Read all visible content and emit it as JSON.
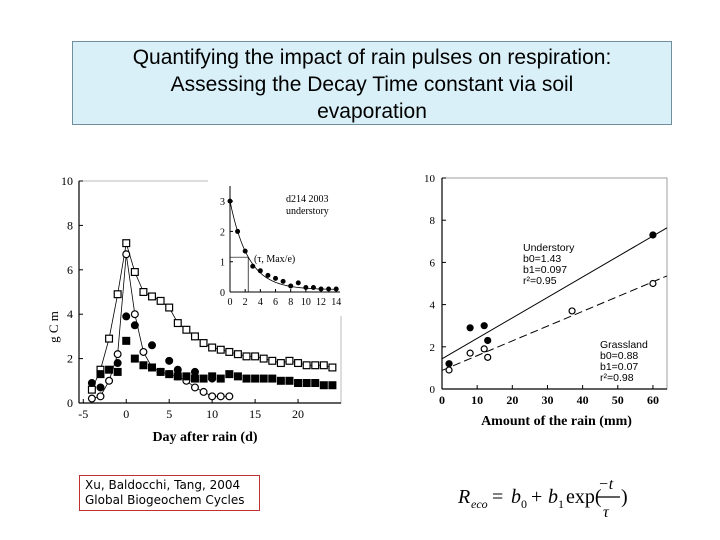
{
  "title": {
    "line1": "Quantifying the impact of rain pulses on respiration:",
    "line2": "Assessing the Decay Time constant via soil",
    "line3": "evaporation"
  },
  "citation": {
    "line1": "Xu, Baldocchi, Tang, 2004",
    "line2": "Global Biogeochem Cycles"
  },
  "formula": {
    "lhs": "R",
    "lhs_sub": "eco",
    "b0": "b",
    "b0_sub": "0",
    "b1": "b",
    "b1_sub": "1",
    "exp": "exp(",
    "numerator": "−t",
    "denominator": "τ",
    "close": ")"
  },
  "colors": {
    "title_bg": "#d9f0f8",
    "citation_border": "#c03030",
    "series": "#000000"
  },
  "chart_data": [
    {
      "type": "scatter",
      "panel": "left-main",
      "xlabel": "Day after rain (d)",
      "ylabel": "g C m",
      "x_ticks": [
        "-5",
        "0",
        "5",
        "10",
        "15",
        "20"
      ],
      "y_ticks": [
        "0",
        "2",
        "4",
        "6",
        "8",
        "10"
      ],
      "xlim": [
        -5.5,
        25
      ],
      "ylim": [
        0,
        10
      ],
      "series": [
        {
          "marker": "open-square",
          "connected": true,
          "x": [
            -4,
            -3,
            -2,
            -1,
            0,
            1,
            2,
            3,
            4,
            5,
            6,
            7,
            8,
            9,
            10,
            11,
            12,
            13,
            14,
            15,
            16,
            17,
            18,
            19,
            20,
            21,
            22,
            23,
            24
          ],
          "y": [
            0.6,
            1.5,
            2.9,
            4.9,
            7.2,
            5.9,
            5,
            4.8,
            4.6,
            4.3,
            3.6,
            3.3,
            3,
            2.7,
            2.5,
            2.4,
            2.3,
            2.2,
            2.1,
            2.1,
            2,
            1.9,
            1.8,
            1.9,
            1.8,
            1.7,
            1.7,
            1.7,
            1.6
          ]
        },
        {
          "marker": "open-circle",
          "connected": true,
          "x": [
            -4,
            -3,
            -2,
            -1,
            0,
            1,
            2,
            3,
            4,
            5,
            6,
            7,
            8,
            9,
            10,
            11,
            12
          ],
          "y": [
            0.2,
            0.3,
            1,
            2.2,
            6.7,
            4,
            2.3,
            1.6,
            1.4,
            1.3,
            1.2,
            1,
            0.7,
            0.5,
            0.3,
            0.3,
            0.3
          ]
        },
        {
          "marker": "filled-circle",
          "connected": false,
          "x": [
            -4,
            -3,
            -1,
            0,
            1,
            3,
            5,
            6,
            8,
            10
          ],
          "y": [
            0.9,
            0.7,
            1.8,
            3.9,
            3.5,
            2.6,
            1.9,
            1.5,
            1.4,
            1.1
          ]
        },
        {
          "marker": "filled-square",
          "connected": false,
          "x": [
            -3,
            -2,
            -1,
            0,
            1,
            2,
            3,
            4,
            5,
            6,
            7,
            8,
            9,
            10,
            11,
            12,
            13,
            14,
            15,
            16,
            17,
            18,
            19,
            20,
            21,
            22,
            23,
            24
          ],
          "y": [
            1.3,
            1.5,
            1.4,
            2.8,
            2,
            1.7,
            1.6,
            1.4,
            1.3,
            1.2,
            1.2,
            1.1,
            1.1,
            1.2,
            1.1,
            1.3,
            1.2,
            1.1,
            1.1,
            1.1,
            1.1,
            1,
            1,
            0.9,
            0.9,
            0.9,
            0.8,
            0.8
          ]
        }
      ]
    },
    {
      "type": "scatter",
      "panel": "left-inset",
      "annotation_line1": "d214 2003",
      "annotation_line2": "understory",
      "tau_label": "(τ, Max/e)",
      "x_ticks": [
        "0",
        "2",
        "4",
        "6",
        "8",
        "10",
        "12",
        "14"
      ],
      "y_ticks": [
        "0",
        "1",
        "2",
        "3"
      ],
      "xlim": [
        0,
        14.5
      ],
      "ylim": [
        0,
        3.5
      ],
      "series": [
        {
          "marker": "filled-circle",
          "fit_curve": true,
          "x": [
            0,
            1,
            2,
            3,
            4,
            5,
            6,
            7,
            8,
            9,
            10,
            11,
            12,
            13,
            14
          ],
          "y": [
            3,
            2,
            1.35,
            0.85,
            0.7,
            0.55,
            0.45,
            0.35,
            0.2,
            0.3,
            0.15,
            0.15,
            0.1,
            0.1,
            0.1
          ]
        }
      ]
    },
    {
      "type": "scatter",
      "panel": "right",
      "xlabel": "Amount of the rain (mm)",
      "x_ticks": [
        "0",
        "10",
        "20",
        "30",
        "40",
        "50",
        "60"
      ],
      "y_ticks": [
        "0",
        "2",
        "4",
        "6",
        "8",
        "10"
      ],
      "xlim": [
        0,
        64
      ],
      "ylim": [
        0,
        10
      ],
      "series": [
        {
          "name": "Understory",
          "marker": "filled-circle",
          "line": "solid",
          "fit_label1": "b0=1.43",
          "fit_label2": "b1=0.097",
          "fit_label3": "r²=0.95",
          "b0": 1.43,
          "b1": 0.097,
          "x": [
            2,
            8,
            12,
            13,
            60
          ],
          "y": [
            1.2,
            2.9,
            3,
            2.3,
            7.3
          ]
        },
        {
          "name": "Grassland",
          "marker": "open-circle",
          "line": "dashed",
          "fit_label1": "b0=0.88",
          "fit_label2": "b1=0.07",
          "fit_label3": "r²=0.98",
          "b0": 0.88,
          "b1": 0.07,
          "x": [
            2,
            8,
            12,
            13,
            37,
            60
          ],
          "y": [
            0.9,
            1.7,
            1.9,
            1.5,
            3.7,
            5
          ]
        }
      ]
    }
  ]
}
